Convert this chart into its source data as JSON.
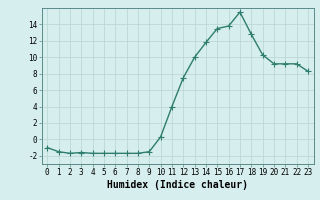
{
  "x": [
    0,
    1,
    2,
    3,
    4,
    5,
    6,
    7,
    8,
    9,
    10,
    11,
    12,
    13,
    14,
    15,
    16,
    17,
    18,
    19,
    20,
    21,
    22,
    23
  ],
  "y": [
    -1.0,
    -1.5,
    -1.7,
    -1.6,
    -1.7,
    -1.7,
    -1.7,
    -1.7,
    -1.7,
    -1.5,
    0.3,
    4.0,
    7.5,
    10.0,
    11.8,
    13.5,
    13.8,
    15.5,
    12.8,
    10.3,
    9.2,
    9.2,
    9.2,
    8.3
  ],
  "line_color": "#2e7d6e",
  "marker": "+",
  "marker_size": 4,
  "bg_color": "#d6eeee",
  "grid_color": "#b8d4d4",
  "xlabel": "Humidex (Indice chaleur)",
  "xlim": [
    -0.5,
    23.5
  ],
  "ylim": [
    -3,
    16
  ],
  "yticks": [
    -2,
    0,
    2,
    4,
    6,
    8,
    10,
    12,
    14
  ],
  "xticks": [
    0,
    1,
    2,
    3,
    4,
    5,
    6,
    7,
    8,
    9,
    10,
    11,
    12,
    13,
    14,
    15,
    16,
    17,
    18,
    19,
    20,
    21,
    22,
    23
  ],
  "tick_fontsize": 5.5,
  "xlabel_fontsize": 7,
  "line_width": 1.0
}
